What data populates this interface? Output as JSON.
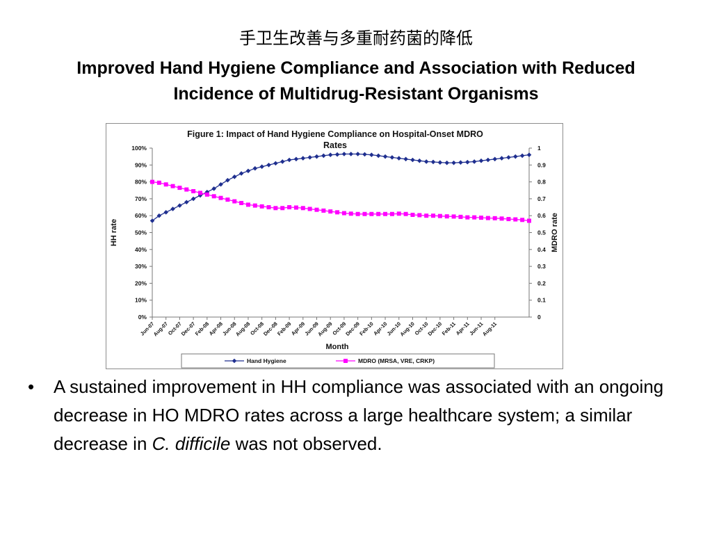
{
  "slide": {
    "title_cn": "手卫生改善与多重耐药菌的降低",
    "title_en": "Improved Hand Hygiene Compliance and Association with Reduced Incidence of Multidrug-Resistant Organisms",
    "bullet_symbol": "•",
    "bullet": {
      "part1": "A sustained improvement in HH compliance was associated with an ongoing decrease in HO MDRO rates across a large healthcare system; a similar decrease in ",
      "italic": "C. difficile",
      "part2": " was not observed."
    }
  },
  "chart_data": {
    "type": "line",
    "title": "Figure 1: Impact of Hand Hygiene Compliance on Hospital-Onset MDRO Rates",
    "xlabel": "Month",
    "ylabel_left": "HH rate",
    "ylabel_right": "MDRO rate",
    "x_tick_labels": [
      "Jun-07",
      "Aug-07",
      "Oct-07",
      "Dec-07",
      "Feb-08",
      "Apr-08",
      "Jun-08",
      "Aug-08",
      "Oct-08",
      "Dec-08",
      "Feb-09",
      "Apr-09",
      "Jun-09",
      "Aug-09",
      "Oct-09",
      "Dec-09",
      "Feb-10",
      "Apr-10",
      "Jun-10",
      "Aug-10",
      "Oct-10",
      "Dec-10",
      "Feb-11",
      "Apr-11",
      "Jun-11",
      "Aug-11"
    ],
    "y_left_ticks": [
      "0%",
      "10%",
      "20%",
      "30%",
      "40%",
      "50%",
      "60%",
      "70%",
      "80%",
      "90%",
      "100%"
    ],
    "y_right_ticks": [
      "0",
      "0.1",
      "0.2",
      "0.3",
      "0.4",
      "0.5",
      "0.6",
      "0.7",
      "0.8",
      "0.9",
      "1"
    ],
    "y_left_range": [
      0,
      1
    ],
    "y_right_range": [
      0,
      1
    ],
    "legend_position": "bottom",
    "series": [
      {
        "name": "Hand Hygiene",
        "axis": "left",
        "color": "#1f2f8f",
        "marker": "diamond",
        "values": [
          0.57,
          0.6,
          0.62,
          0.64,
          0.66,
          0.68,
          0.7,
          0.72,
          0.74,
          0.76,
          0.785,
          0.81,
          0.83,
          0.85,
          0.865,
          0.88,
          0.89,
          0.9,
          0.91,
          0.92,
          0.93,
          0.935,
          0.94,
          0.945,
          0.95,
          0.955,
          0.96,
          0.962,
          0.965,
          0.965,
          0.965,
          0.963,
          0.96,
          0.955,
          0.95,
          0.945,
          0.94,
          0.935,
          0.93,
          0.925,
          0.92,
          0.918,
          0.915,
          0.913,
          0.913,
          0.915,
          0.917,
          0.92,
          0.925,
          0.93,
          0.935,
          0.94,
          0.945,
          0.95,
          0.955,
          0.96
        ]
      },
      {
        "name": "MDRO (MRSA, VRE, CRKP)",
        "axis": "right",
        "color": "#ff00ff",
        "marker": "square",
        "values": [
          0.8,
          0.795,
          0.785,
          0.775,
          0.765,
          0.755,
          0.745,
          0.735,
          0.725,
          0.715,
          0.705,
          0.695,
          0.685,
          0.675,
          0.665,
          0.66,
          0.655,
          0.65,
          0.645,
          0.645,
          0.65,
          0.648,
          0.645,
          0.64,
          0.635,
          0.63,
          0.625,
          0.62,
          0.615,
          0.612,
          0.61,
          0.61,
          0.61,
          0.61,
          0.61,
          0.61,
          0.612,
          0.61,
          0.605,
          0.603,
          0.6,
          0.6,
          0.598,
          0.596,
          0.595,
          0.593,
          0.59,
          0.59,
          0.588,
          0.586,
          0.585,
          0.583,
          0.58,
          0.578,
          0.575,
          0.57
        ]
      }
    ]
  }
}
